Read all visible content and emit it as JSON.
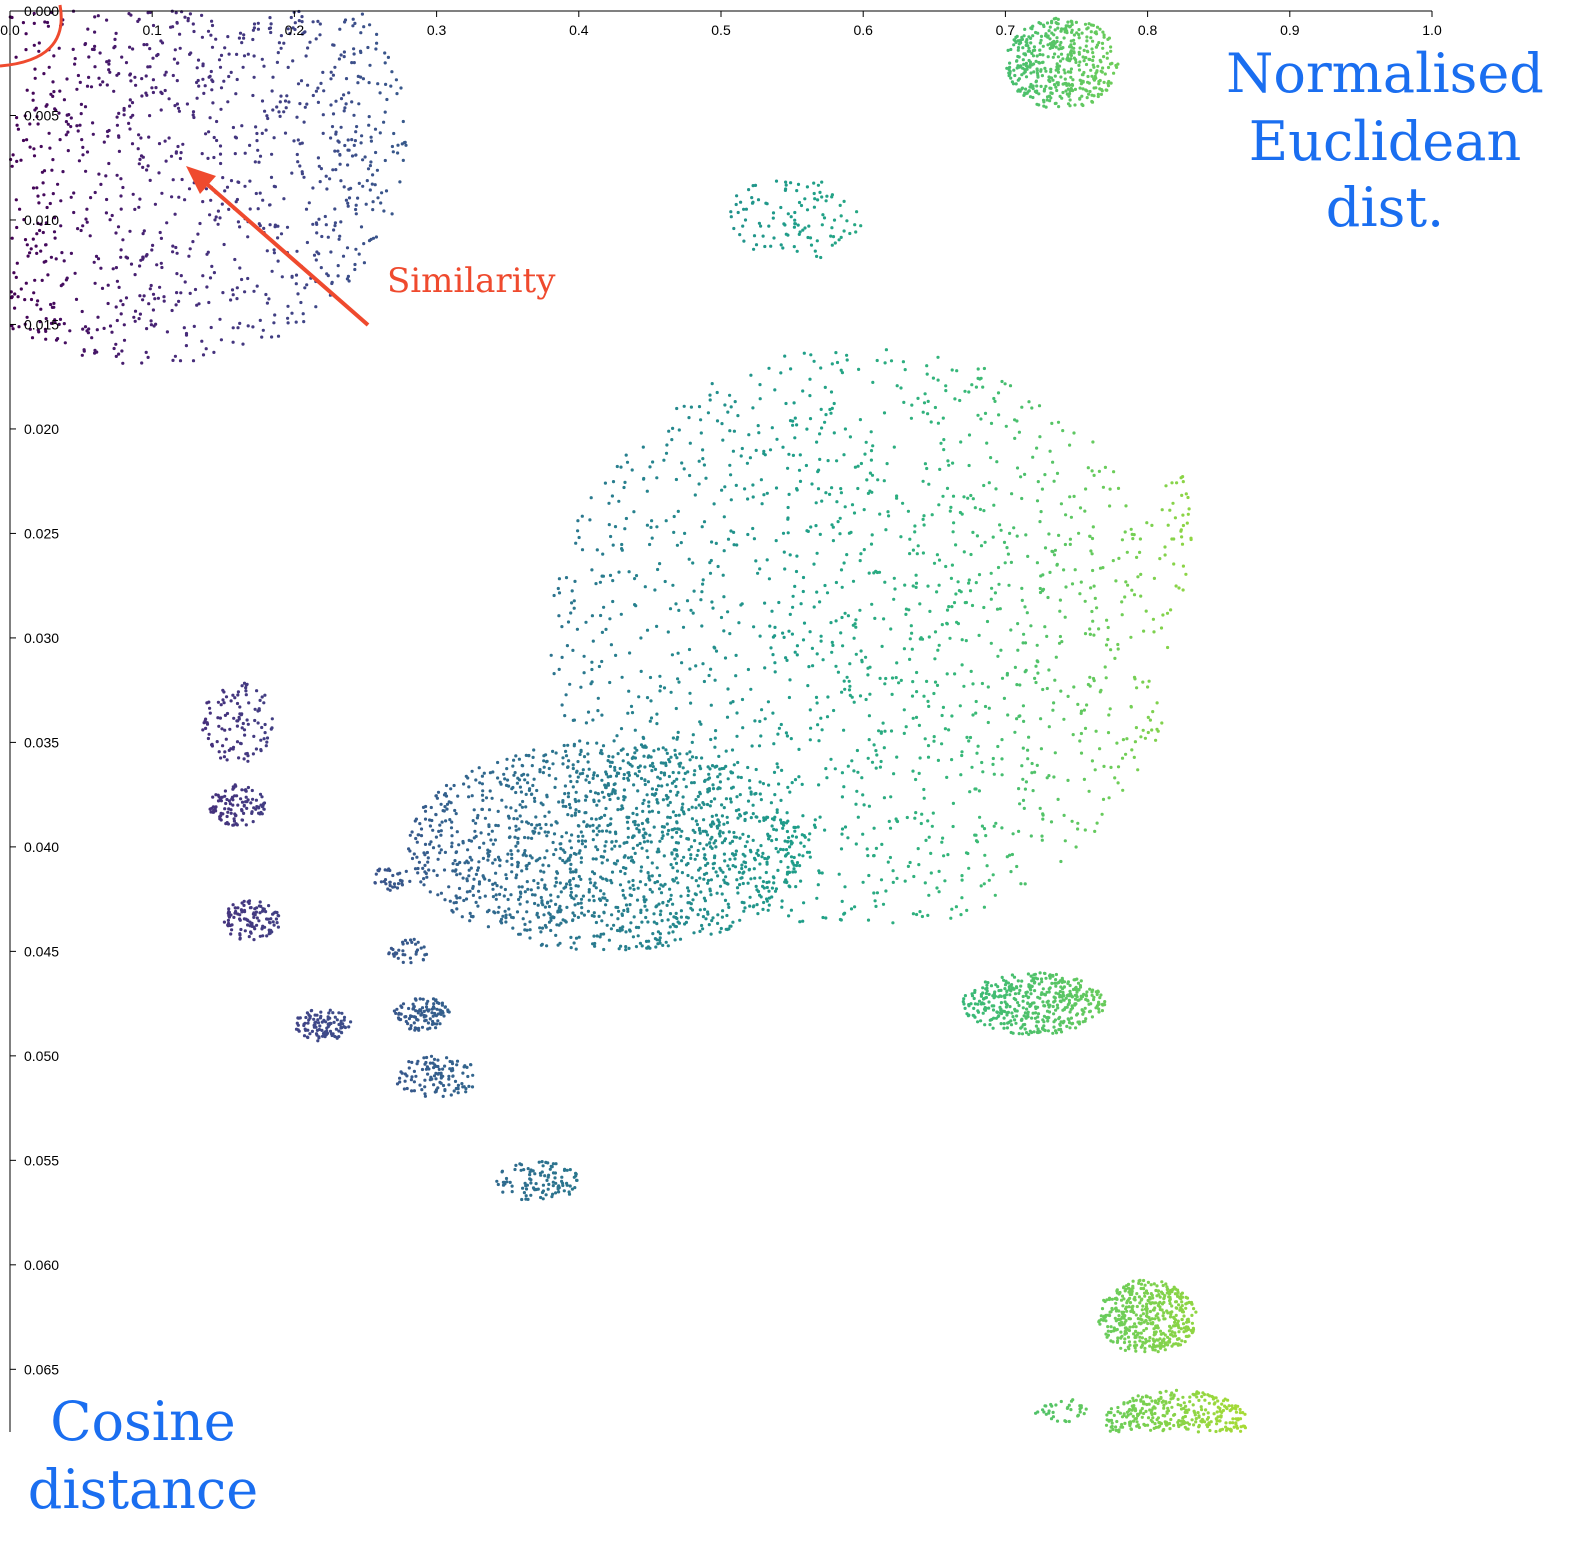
{
  "chart_data": {
    "type": "scatter",
    "title": "",
    "x_axis": {
      "label": "Normalised Euclidean dist.",
      "range": [
        0.0,
        1.0
      ],
      "position": "top",
      "ticks": [
        "0.0",
        "0.1",
        "0.2",
        "0.3",
        "0.4",
        "0.5",
        "0.6",
        "0.7",
        "0.8",
        "0.9",
        "1.0"
      ]
    },
    "y_axis": {
      "label": "Cosine distance",
      "range": [
        0.0,
        0.068
      ],
      "position": "left",
      "ticks": [
        "0.000",
        "0.005",
        "0.010",
        "0.015",
        "0.020",
        "0.025",
        "0.030",
        "0.035",
        "0.040",
        "0.045",
        "0.050",
        "0.055",
        "0.060",
        "0.065"
      ]
    },
    "color_scale": "viridis (colored by Normalised Euclidean dist.)",
    "annotation": "Similarity",
    "clusters": [
      {
        "x_center": 0.1,
        "y_center": 0.006,
        "x_spread": 0.18,
        "y_spread": 0.011,
        "density": "very high"
      },
      {
        "x_center": 0.6,
        "y_center": 0.03,
        "x_spread": 0.22,
        "y_spread": 0.014,
        "density": "very high"
      },
      {
        "x_center": 0.42,
        "y_center": 0.04,
        "x_spread": 0.14,
        "y_spread": 0.005,
        "density": "very high"
      },
      {
        "x_center": 0.55,
        "y_center": 0.01,
        "x_spread": 0.05,
        "y_spread": 0.002,
        "density": "medium"
      },
      {
        "x_center": 0.74,
        "y_center": 0.0025,
        "x_spread": 0.04,
        "y_spread": 0.0022,
        "density": "high"
      },
      {
        "x_center": 0.72,
        "y_center": 0.0475,
        "x_spread": 0.05,
        "y_spread": 0.0015,
        "density": "high"
      },
      {
        "x_center": 0.8,
        "y_center": 0.0625,
        "x_spread": 0.035,
        "y_spread": 0.0018,
        "density": "high"
      },
      {
        "x_center": 0.82,
        "y_center": 0.0675,
        "x_spread": 0.05,
        "y_spread": 0.0015,
        "density": "high"
      },
      {
        "x_center": 0.16,
        "y_center": 0.034,
        "x_spread": 0.025,
        "y_spread": 0.002,
        "density": "medium"
      },
      {
        "x_center": 0.16,
        "y_center": 0.038,
        "x_spread": 0.02,
        "y_spread": 0.001,
        "density": "medium"
      },
      {
        "x_center": 0.17,
        "y_center": 0.0435,
        "x_spread": 0.02,
        "y_spread": 0.001,
        "density": "medium"
      },
      {
        "x_center": 0.3,
        "y_center": 0.051,
        "x_spread": 0.03,
        "y_spread": 0.001,
        "density": "medium"
      },
      {
        "x_center": 0.37,
        "y_center": 0.056,
        "x_spread": 0.03,
        "y_spread": 0.001,
        "density": "medium"
      },
      {
        "x_center": 0.29,
        "y_center": 0.048,
        "x_spread": 0.02,
        "y_spread": 0.0008,
        "density": "medium"
      },
      {
        "x_center": 0.22,
        "y_center": 0.0485,
        "x_spread": 0.02,
        "y_spread": 0.0008,
        "density": "medium"
      },
      {
        "x_center": 0.82,
        "y_center": 0.025,
        "x_spread": 0.012,
        "y_spread": 0.003,
        "density": "low"
      },
      {
        "x_center": 0.74,
        "y_center": 0.067,
        "x_spread": 0.02,
        "y_spread": 0.0006,
        "density": "low"
      },
      {
        "x_center": 0.27,
        "y_center": 0.0415,
        "x_spread": 0.015,
        "y_spread": 0.0006,
        "density": "low"
      },
      {
        "x_center": 0.28,
        "y_center": 0.045,
        "x_spread": 0.015,
        "y_spread": 0.0006,
        "density": "low"
      }
    ]
  },
  "annotations": {
    "euclidean_line1": "Normalised",
    "euclidean_line2": "Euclidean",
    "euclidean_line3": "dist.",
    "cosine_line1": "Cosine",
    "cosine_line2": "distance",
    "similarity": "Similarity"
  },
  "colors": {
    "annotation_blue": "#1a6ef0",
    "annotation_red": "#ef4a2e",
    "axis": "#000000"
  }
}
